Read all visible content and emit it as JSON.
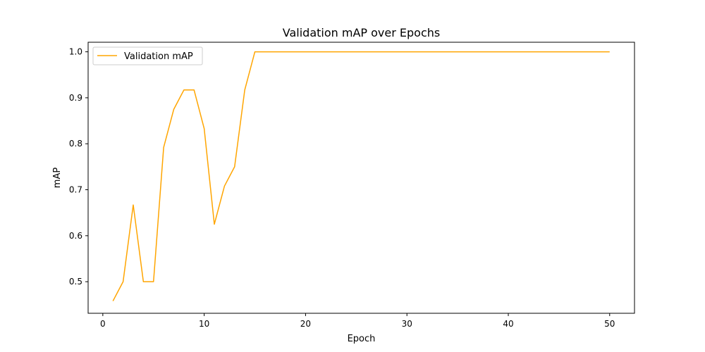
{
  "chart_data": {
    "type": "line",
    "title": "Validation mAP over Epochs",
    "xlabel": "Epoch",
    "ylabel": "mAP",
    "xlim": [
      -1.45,
      52.45
    ],
    "ylim": [
      0.4313,
      1.0208
    ],
    "xticks": [
      0,
      10,
      20,
      30,
      40,
      50
    ],
    "yticks": [
      0.5,
      0.6,
      0.7,
      0.8,
      0.9,
      1.0
    ],
    "xtick_labels": [
      "0",
      "10",
      "20",
      "30",
      "40",
      "50"
    ],
    "ytick_labels": [
      "0.5",
      "0.6",
      "0.7",
      "0.8",
      "0.9",
      "1.0"
    ],
    "grid": false,
    "legend_position": "top-left",
    "series": [
      {
        "name": "Validation mAP",
        "color": "#ffa500",
        "x": [
          1,
          2,
          3,
          4,
          5,
          6,
          7,
          8,
          9,
          10,
          11,
          12,
          13,
          14,
          15,
          16,
          17,
          18,
          19,
          20,
          21,
          22,
          23,
          24,
          25,
          26,
          27,
          28,
          29,
          30,
          31,
          32,
          33,
          34,
          35,
          36,
          37,
          38,
          39,
          40,
          41,
          42,
          43,
          44,
          45,
          46,
          47,
          48,
          49,
          50
        ],
        "y": [
          0.458,
          0.5,
          0.667,
          0.5,
          0.5,
          0.792,
          0.875,
          0.917,
          0.917,
          0.833,
          0.625,
          0.708,
          0.75,
          0.917,
          1.0,
          1.0,
          1.0,
          1.0,
          1.0,
          1.0,
          1.0,
          1.0,
          1.0,
          1.0,
          1.0,
          1.0,
          1.0,
          1.0,
          1.0,
          1.0,
          1.0,
          1.0,
          1.0,
          1.0,
          1.0,
          1.0,
          1.0,
          1.0,
          1.0,
          1.0,
          1.0,
          1.0,
          1.0,
          1.0,
          1.0,
          1.0,
          1.0,
          1.0,
          1.0,
          1.0
        ]
      }
    ]
  }
}
